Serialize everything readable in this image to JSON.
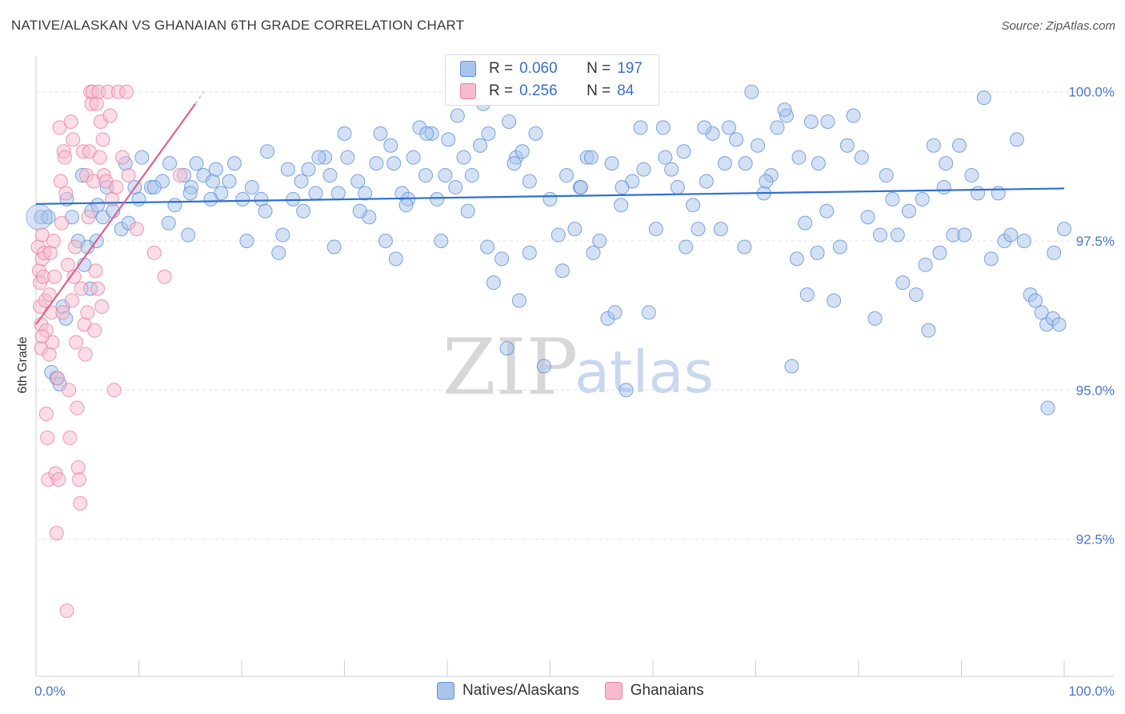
{
  "header": {
    "title": "NATIVE/ALASKAN VS GHANAIAN 6TH GRADE CORRELATION CHART",
    "source": "Source: ZipAtlas.com"
  },
  "watermark": {
    "zip": "ZIP",
    "atlas": "atlas"
  },
  "legend": {
    "series": [
      {
        "r_label": "R =",
        "r_value": "0.060",
        "n_label": "N =",
        "n_value": "197"
      },
      {
        "r_label": "R =",
        "r_value": "0.256",
        "n_label": "N =",
        "n_value": "84"
      }
    ]
  },
  "bottom_legend": {
    "natives": "Natives/Alaskans",
    "ghanaians": "Ghanaians"
  },
  "colors": {
    "natives_fill": "#a9c4ec",
    "natives_stroke": "#5b8fd6",
    "natives_line": "#2f6fcf",
    "ghana_fill": "#f6bccd",
    "ghana_stroke": "#e7819f",
    "ghana_line": "#e0608c",
    "grid": "#e3e3e3",
    "tick_text": "#4a76c9"
  },
  "chart_data": {
    "type": "scatter",
    "title": "NATIVE/ALASKAN VS GHANAIAN 6TH GRADE CORRELATION CHART",
    "xlabel": "",
    "ylabel": "6th Grade",
    "xlim": [
      0,
      100
    ],
    "ylim": [
      90.2,
      100.6
    ],
    "x_tick_labels": [
      "0.0%",
      "100.0%"
    ],
    "y_ticks": [
      {
        "value": 100.0,
        "label": "100.0%"
      },
      {
        "value": 97.5,
        "label": "97.5%"
      },
      {
        "value": 95.0,
        "label": "95.0%"
      },
      {
        "value": 92.5,
        "label": "92.5%"
      }
    ],
    "series": [
      {
        "name": "Natives/Alaskans",
        "r": 0.06,
        "n": 197,
        "trend": {
          "x": [
            0,
            100
          ],
          "y": [
            98.12,
            98.38
          ]
        },
        "points": [
          [
            0.5,
            97.9
          ],
          [
            1.2,
            97.9
          ],
          [
            1.5,
            95.3
          ],
          [
            2.0,
            95.2
          ],
          [
            2.3,
            95.1
          ],
          [
            2.6,
            96.4
          ],
          [
            2.9,
            96.2
          ],
          [
            4.1,
            97.5
          ],
          [
            4.7,
            97.1
          ],
          [
            5.3,
            96.7
          ],
          [
            5.4,
            98.0
          ],
          [
            5.9,
            97.5
          ],
          [
            6.5,
            97.9
          ],
          [
            6.9,
            98.4
          ],
          [
            7.5,
            98.0
          ],
          [
            8.3,
            97.7
          ],
          [
            8.7,
            98.8
          ],
          [
            9.6,
            98.4
          ],
          [
            10.3,
            98.9
          ],
          [
            11.2,
            98.4
          ],
          [
            12.3,
            98.5
          ],
          [
            12.9,
            97.8
          ],
          [
            13.5,
            98.1
          ],
          [
            14.4,
            98.6
          ],
          [
            15.1,
            98.4
          ],
          [
            15.6,
            98.8
          ],
          [
            16.3,
            98.6
          ],
          [
            17.2,
            98.5
          ],
          [
            17.5,
            98.7
          ],
          [
            18.0,
            98.3
          ],
          [
            19.3,
            98.8
          ],
          [
            20.1,
            98.2
          ],
          [
            21.9,
            98.2
          ],
          [
            22.3,
            98.0
          ],
          [
            23.6,
            97.3
          ],
          [
            24.0,
            97.6
          ],
          [
            25.0,
            98.2
          ],
          [
            25.8,
            98.5
          ],
          [
            26.5,
            98.7
          ],
          [
            27.2,
            98.3
          ],
          [
            28.1,
            98.9
          ],
          [
            28.6,
            98.6
          ],
          [
            29.4,
            98.3
          ],
          [
            30.3,
            98.9
          ],
          [
            31.3,
            98.5
          ],
          [
            32.0,
            98.3
          ],
          [
            32.4,
            97.9
          ],
          [
            33.1,
            98.8
          ],
          [
            34.0,
            97.5
          ],
          [
            34.5,
            99.1
          ],
          [
            35.0,
            97.2
          ],
          [
            35.6,
            98.3
          ],
          [
            36.2,
            98.2
          ],
          [
            36.7,
            98.9
          ],
          [
            37.3,
            99.4
          ],
          [
            37.9,
            98.6
          ],
          [
            38.5,
            99.3
          ],
          [
            39.0,
            98.2
          ],
          [
            39.4,
            97.5
          ],
          [
            40.1,
            99.2
          ],
          [
            40.8,
            98.4
          ],
          [
            41.6,
            98.9
          ],
          [
            42.4,
            98.6
          ],
          [
            43.2,
            99.1
          ],
          [
            43.9,
            97.4
          ],
          [
            44.5,
            96.8
          ],
          [
            45.3,
            97.2
          ],
          [
            45.8,
            95.7
          ],
          [
            46.7,
            98.9
          ],
          [
            47.3,
            99.0
          ],
          [
            48.0,
            98.5
          ],
          [
            48.6,
            99.3
          ],
          [
            49.4,
            95.4
          ],
          [
            50.0,
            98.2
          ],
          [
            50.8,
            97.6
          ],
          [
            51.2,
            97.0
          ],
          [
            51.6,
            98.6
          ],
          [
            52.4,
            97.7
          ],
          [
            52.9,
            98.4
          ],
          [
            53.6,
            98.9
          ],
          [
            54.2,
            97.3
          ],
          [
            54.8,
            97.5
          ],
          [
            55.6,
            96.2
          ],
          [
            56.3,
            96.3
          ],
          [
            56.9,
            98.1
          ],
          [
            57.4,
            95.0
          ],
          [
            58.0,
            98.5
          ],
          [
            59.1,
            98.7
          ],
          [
            59.6,
            96.3
          ],
          [
            60.3,
            97.7
          ],
          [
            61.2,
            98.9
          ],
          [
            61.8,
            98.7
          ],
          [
            62.4,
            98.4
          ],
          [
            63.2,
            97.4
          ],
          [
            63.9,
            98.1
          ],
          [
            64.4,
            97.7
          ],
          [
            65.2,
            98.5
          ],
          [
            65.8,
            99.3
          ],
          [
            66.6,
            97.7
          ],
          [
            67.4,
            99.4
          ],
          [
            68.1,
            99.2
          ],
          [
            68.9,
            97.4
          ],
          [
            69.6,
            100.0
          ],
          [
            70.2,
            99.1
          ],
          [
            70.8,
            98.3
          ],
          [
            71.5,
            98.6
          ],
          [
            72.1,
            99.4
          ],
          [
            73.0,
            99.6
          ],
          [
            73.5,
            95.4
          ],
          [
            74.2,
            98.9
          ],
          [
            74.8,
            97.8
          ],
          [
            75.4,
            99.5
          ],
          [
            76.1,
            98.8
          ],
          [
            76.9,
            98.0
          ],
          [
            77.6,
            96.5
          ],
          [
            78.2,
            97.4
          ],
          [
            78.9,
            99.1
          ],
          [
            79.5,
            99.6
          ],
          [
            80.3,
            98.9
          ],
          [
            80.9,
            97.9
          ],
          [
            81.6,
            96.2
          ],
          [
            82.1,
            97.6
          ],
          [
            82.7,
            98.6
          ],
          [
            83.3,
            98.2
          ],
          [
            83.8,
            97.6
          ],
          [
            84.3,
            96.8
          ],
          [
            84.9,
            98.0
          ],
          [
            85.6,
            96.6
          ],
          [
            86.2,
            98.2
          ],
          [
            86.8,
            96.0
          ],
          [
            87.3,
            99.1
          ],
          [
            87.9,
            97.3
          ],
          [
            88.5,
            98.8
          ],
          [
            89.2,
            97.6
          ],
          [
            89.8,
            99.1
          ],
          [
            90.3,
            97.6
          ],
          [
            91.0,
            98.6
          ],
          [
            91.6,
            98.3
          ],
          [
            92.2,
            99.9
          ],
          [
            92.9,
            97.2
          ],
          [
            93.6,
            98.3
          ],
          [
            94.2,
            97.5
          ],
          [
            94.8,
            97.6
          ],
          [
            95.4,
            99.2
          ],
          [
            96.1,
            97.5
          ],
          [
            96.7,
            96.6
          ],
          [
            97.2,
            96.5
          ],
          [
            97.8,
            96.3
          ],
          [
            98.3,
            96.1
          ],
          [
            98.9,
            96.2
          ],
          [
            99.5,
            96.1
          ],
          [
            100.0,
            97.7
          ],
          [
            99.0,
            97.3
          ],
          [
            98.4,
            94.7
          ],
          [
            88.3,
            98.4
          ],
          [
            86.5,
            97.1
          ],
          [
            76.0,
            97.3
          ],
          [
            75.0,
            96.6
          ],
          [
            74.0,
            97.2
          ],
          [
            57.0,
            98.4
          ],
          [
            56.0,
            98.8
          ],
          [
            54.0,
            98.9
          ],
          [
            48.0,
            97.3
          ],
          [
            47.0,
            96.5
          ],
          [
            46.5,
            98.8
          ],
          [
            44.0,
            99.3
          ],
          [
            42.0,
            98.0
          ],
          [
            41.0,
            99.6
          ],
          [
            38.0,
            99.3
          ],
          [
            36.0,
            98.1
          ],
          [
            33.5,
            99.3
          ],
          [
            31.5,
            98.0
          ],
          [
            29.0,
            97.4
          ],
          [
            26.0,
            98.0
          ],
          [
            24.5,
            98.7
          ],
          [
            21.0,
            98.4
          ],
          [
            20.5,
            97.5
          ],
          [
            17.0,
            98.2
          ],
          [
            15.0,
            98.3
          ],
          [
            10.0,
            98.2
          ],
          [
            9.0,
            97.8
          ],
          [
            6.0,
            98.1
          ],
          [
            5.0,
            97.4
          ],
          [
            4.5,
            98.6
          ],
          [
            3.5,
            97.9
          ],
          [
            3.0,
            98.2
          ],
          [
            13.0,
            98.8
          ],
          [
            11.5,
            98.4
          ],
          [
            14.8,
            97.6
          ],
          [
            18.8,
            98.5
          ],
          [
            22.5,
            99.0
          ],
          [
            27.5,
            98.9
          ],
          [
            30.0,
            99.3
          ],
          [
            34.8,
            98.8
          ],
          [
            39.8,
            98.6
          ],
          [
            43.5,
            99.8
          ],
          [
            46.0,
            99.5
          ],
          [
            53.0,
            98.4
          ],
          [
            58.8,
            99.4
          ],
          [
            61.0,
            99.4
          ],
          [
            63.0,
            99.0
          ],
          [
            65.0,
            99.4
          ],
          [
            67.0,
            98.8
          ],
          [
            69.0,
            98.8
          ],
          [
            71.0,
            98.5
          ],
          [
            72.8,
            99.7
          ],
          [
            77.0,
            99.5
          ]
        ]
      },
      {
        "name": "Ghanaians",
        "r": 0.256,
        "n": 84,
        "trend": {
          "x": [
            0,
            15.5
          ],
          "y": [
            96.1,
            99.8
          ]
        },
        "points": [
          [
            0.2,
            97.4
          ],
          [
            0.3,
            97.0
          ],
          [
            0.4,
            96.8
          ],
          [
            0.4,
            96.4
          ],
          [
            0.5,
            96.1
          ],
          [
            0.5,
            95.7
          ],
          [
            0.6,
            97.2
          ],
          [
            0.6,
            97.6
          ],
          [
            0.7,
            96.9
          ],
          [
            0.8,
            97.3
          ],
          [
            0.9,
            96.5
          ],
          [
            1.0,
            96.0
          ],
          [
            1.0,
            94.6
          ],
          [
            1.1,
            94.2
          ],
          [
            1.2,
            93.5
          ],
          [
            1.3,
            95.6
          ],
          [
            1.3,
            96.6
          ],
          [
            1.4,
            97.3
          ],
          [
            1.5,
            96.3
          ],
          [
            1.6,
            95.8
          ],
          [
            1.7,
            97.5
          ],
          [
            1.8,
            96.9
          ],
          [
            1.9,
            93.6
          ],
          [
            2.0,
            92.6
          ],
          [
            2.1,
            95.2
          ],
          [
            2.2,
            93.5
          ],
          [
            2.3,
            99.4
          ],
          [
            2.4,
            98.5
          ],
          [
            2.5,
            97.8
          ],
          [
            2.6,
            96.3
          ],
          [
            2.7,
            99.0
          ],
          [
            2.8,
            98.9
          ],
          [
            2.9,
            98.3
          ],
          [
            3.0,
            91.3
          ],
          [
            3.1,
            97.1
          ],
          [
            3.2,
            95.0
          ],
          [
            3.3,
            94.2
          ],
          [
            3.4,
            99.5
          ],
          [
            3.5,
            96.5
          ],
          [
            3.6,
            99.2
          ],
          [
            3.7,
            96.9
          ],
          [
            3.8,
            97.4
          ],
          [
            3.9,
            95.8
          ],
          [
            4.0,
            94.7
          ],
          [
            4.1,
            93.7
          ],
          [
            4.2,
            93.5
          ],
          [
            4.3,
            93.1
          ],
          [
            4.4,
            96.7
          ],
          [
            4.6,
            99.0
          ],
          [
            4.7,
            96.1
          ],
          [
            4.8,
            95.6
          ],
          [
            4.9,
            98.6
          ],
          [
            5.0,
            96.3
          ],
          [
            5.1,
            97.9
          ],
          [
            5.2,
            99.0
          ],
          [
            5.3,
            100.0
          ],
          [
            5.4,
            99.8
          ],
          [
            5.5,
            100.0
          ],
          [
            5.6,
            98.5
          ],
          [
            5.7,
            96.0
          ],
          [
            5.8,
            97.0
          ],
          [
            5.9,
            99.8
          ],
          [
            6.0,
            96.7
          ],
          [
            6.1,
            100.0
          ],
          [
            6.2,
            98.9
          ],
          [
            6.3,
            99.5
          ],
          [
            6.4,
            96.4
          ],
          [
            6.5,
            99.2
          ],
          [
            6.6,
            98.6
          ],
          [
            6.8,
            98.5
          ],
          [
            7.0,
            100.0
          ],
          [
            7.2,
            99.6
          ],
          [
            7.4,
            98.2
          ],
          [
            7.6,
            95.0
          ],
          [
            7.8,
            98.4
          ],
          [
            8.0,
            100.0
          ],
          [
            8.4,
            98.9
          ],
          [
            8.8,
            100.0
          ],
          [
            9.0,
            98.6
          ],
          [
            9.8,
            97.7
          ],
          [
            11.5,
            97.3
          ],
          [
            12.5,
            96.9
          ],
          [
            14.0,
            98.6
          ],
          [
            0.6,
            95.9
          ]
        ]
      }
    ]
  }
}
